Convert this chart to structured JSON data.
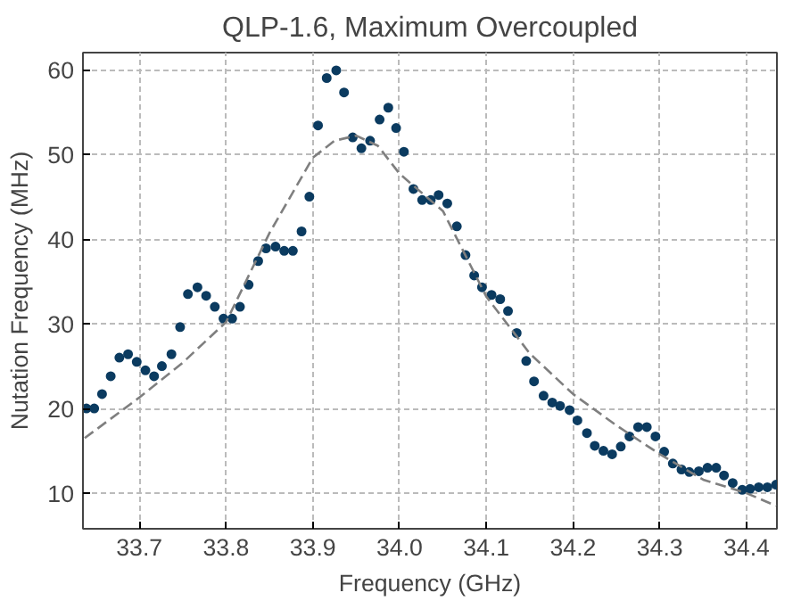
{
  "chart_data": {
    "type": "scatter",
    "title": "QLP-1.6, Maximum Overcoupled",
    "xlabel": "Frequency (GHz)",
    "ylabel": "Nutation Frequency (MHz)",
    "xlim": [
      33.635,
      34.435
    ],
    "ylim": [
      5.8,
      62
    ],
    "xticks": [
      33.7,
      33.8,
      33.9,
      {
        "value": 34.0,
        "label": "34.0"
      },
      34.1,
      34.2,
      34.3,
      34.4
    ],
    "yticks": [
      10,
      20,
      30,
      40,
      50,
      60
    ],
    "grid": true,
    "series": [
      {
        "marker": "circle",
        "color": "#0b3b60",
        "x": [
          33.639,
          33.648,
          33.657,
          33.667,
          33.677,
          33.687,
          33.697,
          33.707,
          33.717,
          33.726,
          33.737,
          33.747,
          33.756,
          33.767,
          33.777,
          33.787,
          33.797,
          33.807,
          33.816,
          33.826,
          33.837,
          33.846,
          33.857,
          33.867,
          33.877,
          33.887,
          33.896,
          33.906,
          33.916,
          33.927,
          33.936,
          33.946,
          33.956,
          33.966,
          33.977,
          33.987,
          33.996,
          34.005,
          34.016,
          34.026,
          34.036,
          34.045,
          34.055,
          34.066,
          34.076,
          34.086,
          34.095,
          34.106,
          34.116,
          34.125,
          34.135,
          34.146,
          34.155,
          34.166,
          34.176,
          34.185,
          34.196,
          34.205,
          34.216,
          34.225,
          34.235,
          34.245,
          34.255,
          34.265,
          34.275,
          34.285,
          34.295,
          34.305,
          34.315,
          34.325,
          34.334,
          34.345,
          34.355,
          34.365,
          34.374,
          34.384,
          34.395,
          34.404,
          34.414,
          34.424,
          34.434
        ],
        "values": [
          20.0,
          20.0,
          21.7,
          23.8,
          26.0,
          26.4,
          25.5,
          24.5,
          23.8,
          25.0,
          26.4,
          29.6,
          33.5,
          34.3,
          33.3,
          32.0,
          30.6,
          30.6,
          32.0,
          34.6,
          37.4,
          38.9,
          39.1,
          38.6,
          38.6,
          40.9,
          45.0,
          53.4,
          59.0,
          59.9,
          57.3,
          52.0,
          50.7,
          51.6,
          54.1,
          55.5,
          53.1,
          50.3,
          45.9,
          44.6,
          44.6,
          45.2,
          44.2,
          41.5,
          38.1,
          35.7,
          34.3,
          33.4,
          32.9,
          31.5,
          28.9,
          25.6,
          23.2,
          21.5,
          20.7,
          20.3,
          19.8,
          18.6,
          17.1,
          15.6,
          15.0,
          14.6,
          15.5,
          16.7,
          17.8,
          17.8,
          16.7,
          14.9,
          13.5,
          12.8,
          12.5,
          12.6,
          13.0,
          13.0,
          12.1,
          11.2,
          10.4,
          10.5,
          10.7,
          10.7,
          11.0
        ]
      },
      {
        "type": "line",
        "line_style": "dashed",
        "color": "#7f7f7f",
        "x": [
          33.637,
          33.7,
          33.75,
          33.8,
          33.85,
          33.9,
          33.925,
          33.95,
          33.975,
          34.0,
          34.05,
          34.1,
          34.15,
          34.2,
          34.25,
          34.3,
          34.35,
          34.4,
          34.434
        ],
        "values": [
          16.5,
          21.3,
          25.4,
          30.2,
          40.7,
          49.6,
          51.6,
          52.2,
          51.0,
          47.7,
          43.3,
          33.2,
          26.5,
          21.7,
          18.0,
          14.6,
          11.6,
          10.0,
          8.5
        ]
      }
    ]
  }
}
